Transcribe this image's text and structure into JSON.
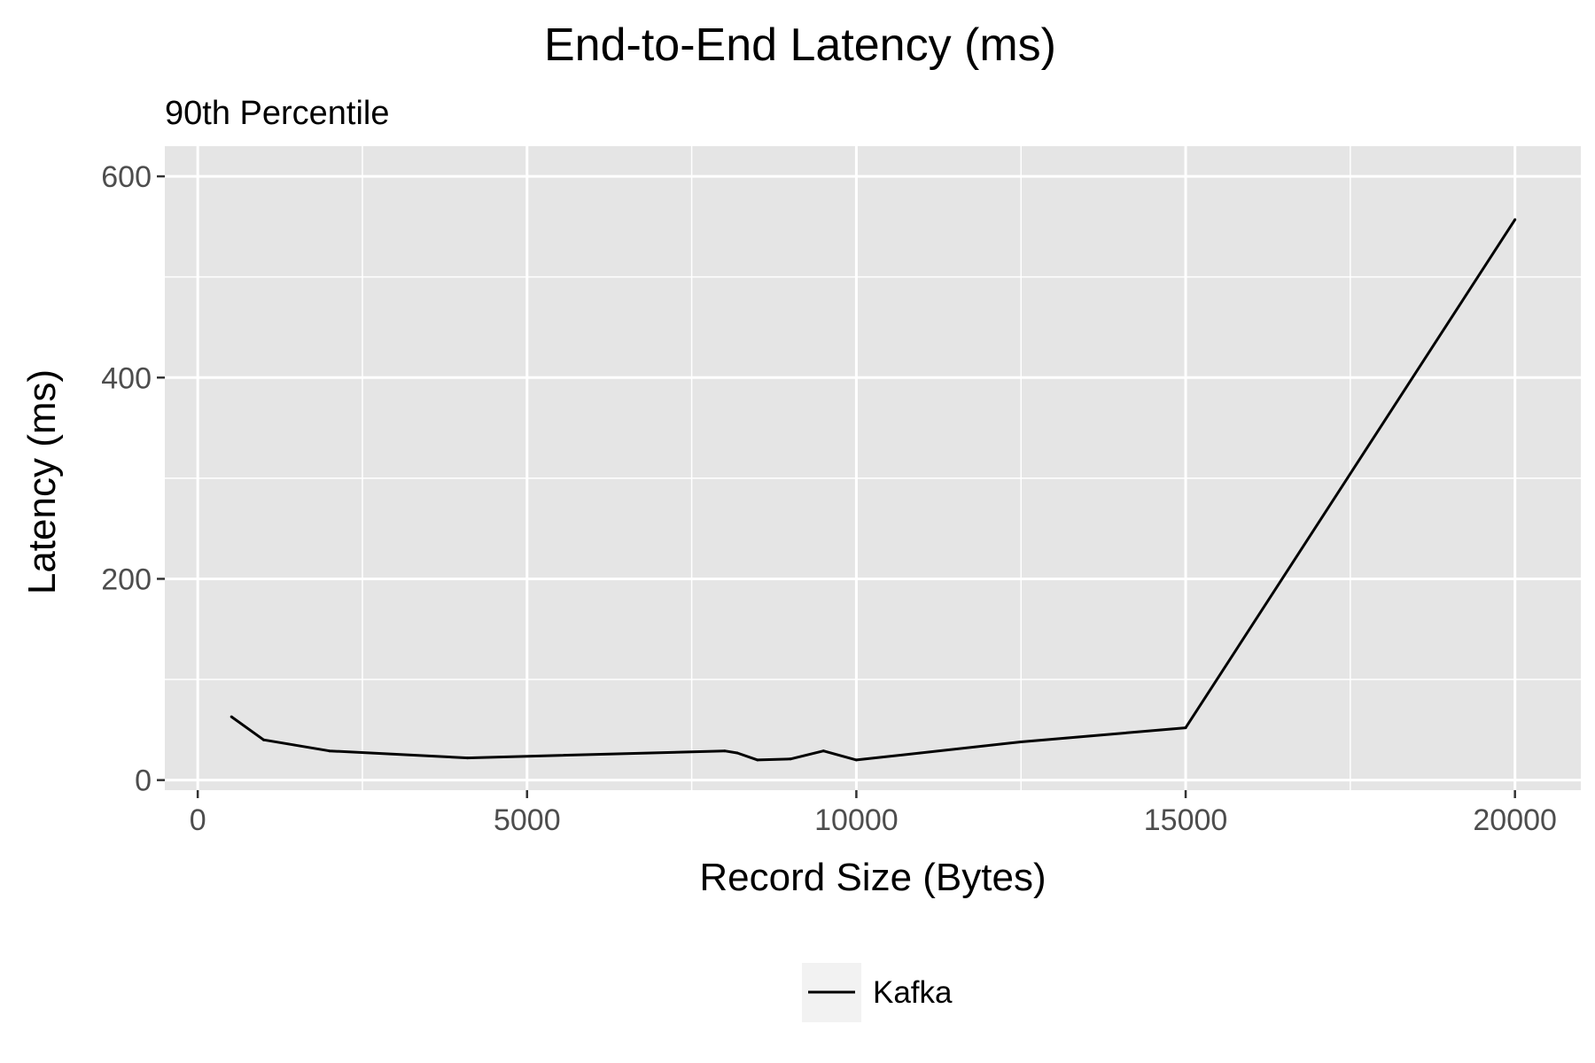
{
  "chart_data": {
    "type": "line",
    "title": "End-to-End Latency (ms)",
    "subtitle": "90th Percentile",
    "xlabel": "Record Size (Bytes)",
    "ylabel": "Latency (ms)",
    "xlim": [
      -500,
      21000
    ],
    "ylim": [
      -10,
      630
    ],
    "x_ticks": [
      0,
      5000,
      10000,
      15000,
      20000
    ],
    "y_ticks": [
      0,
      200,
      400,
      600
    ],
    "grid": true,
    "legend_position": "bottom",
    "colors": {
      "panel": "#e5e5e5",
      "grid": "#ffffff",
      "line": "#000000",
      "legend_key_bg": "#f2f2f2"
    },
    "series": [
      {
        "name": "Kafka",
        "x": [
          512,
          1000,
          2000,
          4096,
          8000,
          8192,
          8500,
          9000,
          9500,
          10000,
          12500,
          15000,
          20000
        ],
        "y": [
          63,
          40,
          29,
          22,
          29,
          27,
          20,
          21,
          29,
          20,
          38,
          52,
          557
        ]
      }
    ]
  }
}
